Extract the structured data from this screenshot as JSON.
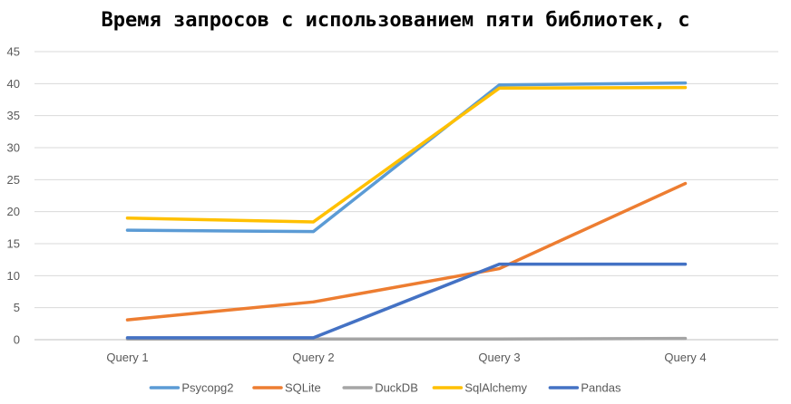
{
  "chart_data": {
    "type": "line",
    "title": "Время запросов с использованием пяти библиотек, с",
    "categories": [
      "Query 1",
      "Query 2",
      "Query 3",
      "Query 4"
    ],
    "ylim": [
      0,
      45
    ],
    "yticks": [
      0,
      5,
      10,
      15,
      20,
      25,
      30,
      35,
      40,
      45
    ],
    "grid": true,
    "legend_position": "bottom",
    "series": [
      {
        "name": "Psycopg2",
        "color": "#5B9BD5",
        "values": [
          17.1,
          16.9,
          39.8,
          40.1
        ]
      },
      {
        "name": "SQLite",
        "color": "#ED7D31",
        "values": [
          3.1,
          5.9,
          11.1,
          24.4
        ]
      },
      {
        "name": "DuckDB",
        "color": "#A5A5A5",
        "values": [
          0.1,
          0.1,
          0.1,
          0.2
        ]
      },
      {
        "name": "SqlAlchemy",
        "color": "#FFC000",
        "values": [
          19.0,
          18.4,
          39.3,
          39.4
        ]
      },
      {
        "name": "Pandas",
        "color": "#4472C4",
        "values": [
          0.3,
          0.3,
          11.8,
          11.8
        ]
      }
    ]
  }
}
